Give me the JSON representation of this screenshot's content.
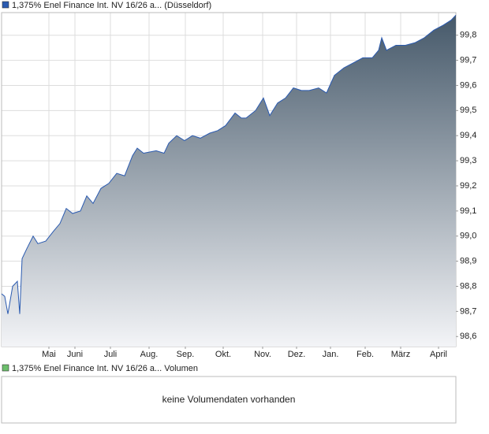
{
  "chart_data": {
    "type": "area",
    "title": "1,375% Enel Finance Int. NV 16/26 a... (Düsseldorf)",
    "x": [
      0,
      4,
      8,
      14,
      20,
      23,
      26,
      32,
      40,
      46,
      56,
      66,
      74,
      82,
      90,
      100,
      108,
      116,
      126,
      136,
      146,
      156,
      166,
      172,
      180,
      196,
      206,
      212,
      222,
      232,
      242,
      252,
      264,
      274,
      284,
      296,
      304,
      310,
      322,
      332,
      340,
      350,
      360,
      370,
      380,
      390,
      402,
      412,
      422,
      434,
      446,
      458,
      470,
      478,
      482,
      488,
      500,
      512,
      524,
      536,
      548,
      560,
      570,
      576
    ],
    "series": [
      {
        "name": "1,375% Enel Finance Int. NV 16/26 a... (Düsseldorf)",
        "color": "#2a5ab0",
        "values": [
          98.77,
          98.76,
          98.69,
          98.8,
          98.82,
          98.69,
          98.91,
          98.95,
          99.0,
          98.97,
          98.98,
          99.02,
          99.05,
          99.11,
          99.09,
          99.1,
          99.16,
          99.13,
          99.19,
          99.21,
          99.25,
          99.24,
          99.32,
          99.35,
          99.33,
          99.34,
          99.33,
          99.37,
          99.4,
          99.38,
          99.4,
          99.39,
          99.41,
          99.42,
          99.44,
          99.49,
          99.47,
          99.47,
          99.5,
          99.55,
          99.48,
          99.53,
          99.55,
          99.59,
          99.58,
          99.58,
          99.59,
          99.57,
          99.64,
          99.67,
          99.69,
          99.71,
          99.71,
          99.74,
          99.79,
          99.74,
          99.76,
          99.76,
          99.77,
          99.79,
          99.82,
          99.84,
          99.86,
          99.88
        ]
      }
    ],
    "xlim": [
      0,
      576
    ],
    "xticks": [
      {
        "value": 60,
        "label": "Mai"
      },
      {
        "value": 93,
        "label": "Juni"
      },
      {
        "value": 138,
        "label": "Juli"
      },
      {
        "value": 187,
        "label": "Aug."
      },
      {
        "value": 233,
        "label": "Sep."
      },
      {
        "value": 281,
        "label": "Okt."
      },
      {
        "value": 331,
        "label": "Nov."
      },
      {
        "value": 374,
        "label": "Dez."
      },
      {
        "value": 417,
        "label": "Jan."
      },
      {
        "value": 461,
        "label": "Feb."
      },
      {
        "value": 506,
        "label": "März"
      },
      {
        "value": 554,
        "label": "April"
      }
    ],
    "ylim": [
      98.56,
      99.89
    ],
    "yticks": [
      {
        "value": 98.6,
        "label": "98,6"
      },
      {
        "value": 98.7,
        "label": "98,7"
      },
      {
        "value": 98.8,
        "label": "98,8"
      },
      {
        "value": 98.9,
        "label": "98,9"
      },
      {
        "value": 99.0,
        "label": "99,0"
      },
      {
        "value": 99.1,
        "label": "99,1"
      },
      {
        "value": 99.2,
        "label": "99,2"
      },
      {
        "value": 99.3,
        "label": "99,3"
      },
      {
        "value": 99.4,
        "label": "99,4"
      },
      {
        "value": 99.5,
        "label": "99,5"
      },
      {
        "value": 99.6,
        "label": "99,6"
      },
      {
        "value": 99.7,
        "label": "99,7"
      },
      {
        "value": 99.8,
        "label": "99,8"
      }
    ],
    "grid": true,
    "volume": {
      "title": "1,375% Enel Finance Int. NV 16/26 a... Volumen",
      "color": "#6cbf6c",
      "message": "keine Volumendaten vorhanden"
    }
  }
}
